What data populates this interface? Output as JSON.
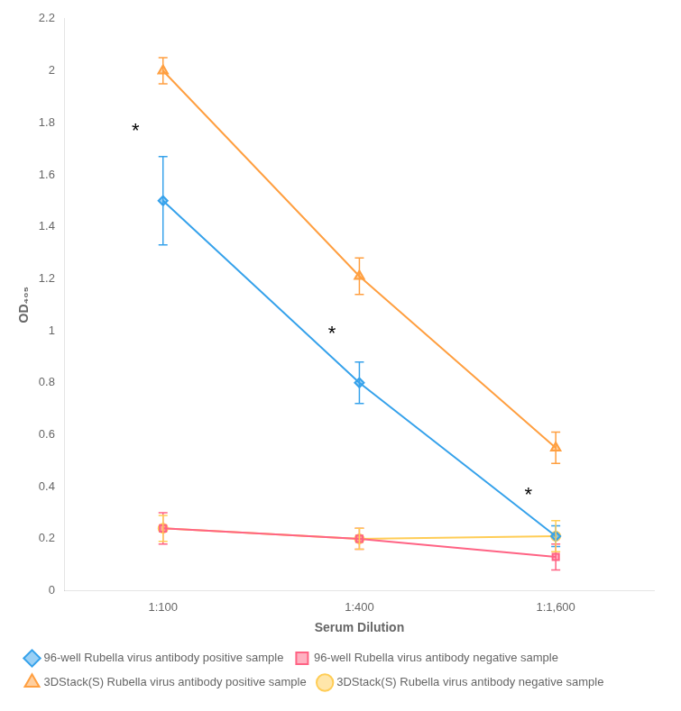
{
  "chart_data": {
    "type": "line",
    "xlabel": "Serum Dilution",
    "ylabel": "OD₄₀₅",
    "categories": [
      "1:100",
      "1:400",
      "1:1,600"
    ],
    "series": [
      {
        "name": "96-well Rubella virus antibody positive sample",
        "values": [
          1.5,
          0.8,
          0.21
        ],
        "errors": [
          0.17,
          0.08,
          0.04
        ],
        "marker": "diamond",
        "line_style": "solid"
      },
      {
        "name": "96-well Rubella virus antibody negative sample",
        "values": [
          0.24,
          0.2,
          0.13
        ],
        "errors": [
          0.06,
          0.04,
          0.05
        ],
        "marker": "square",
        "line_style": "solid"
      },
      {
        "name": "3DStack(S) Rubella virus antibody positive sample",
        "values": [
          2.0,
          1.21,
          0.55
        ],
        "errors": [
          0.05,
          0.07,
          0.06
        ],
        "marker": "triangle",
        "line_style": "solid"
      },
      {
        "name": "3DStack(S) Rubella virus antibody negative sample",
        "values": [
          0.24,
          0.2,
          0.21
        ],
        "errors": [
          0.05,
          0.04,
          0.06
        ],
        "marker": "circle",
        "line_style": "solid"
      }
    ],
    "annotations": [
      {
        "text": "*",
        "x": -0.14,
        "y": 1.78
      },
      {
        "text": "*",
        "x": 0.86,
        "y": 1.0
      },
      {
        "text": "*",
        "x": 1.86,
        "y": 0.38
      }
    ],
    "ylim": [
      0,
      2.2
    ],
    "yticks": [
      0,
      0.2,
      0.4,
      0.6,
      0.8,
      1,
      1.2,
      1.4,
      1.6,
      1.8,
      2,
      2.2
    ],
    "grid": false,
    "legend": "bottom"
  }
}
